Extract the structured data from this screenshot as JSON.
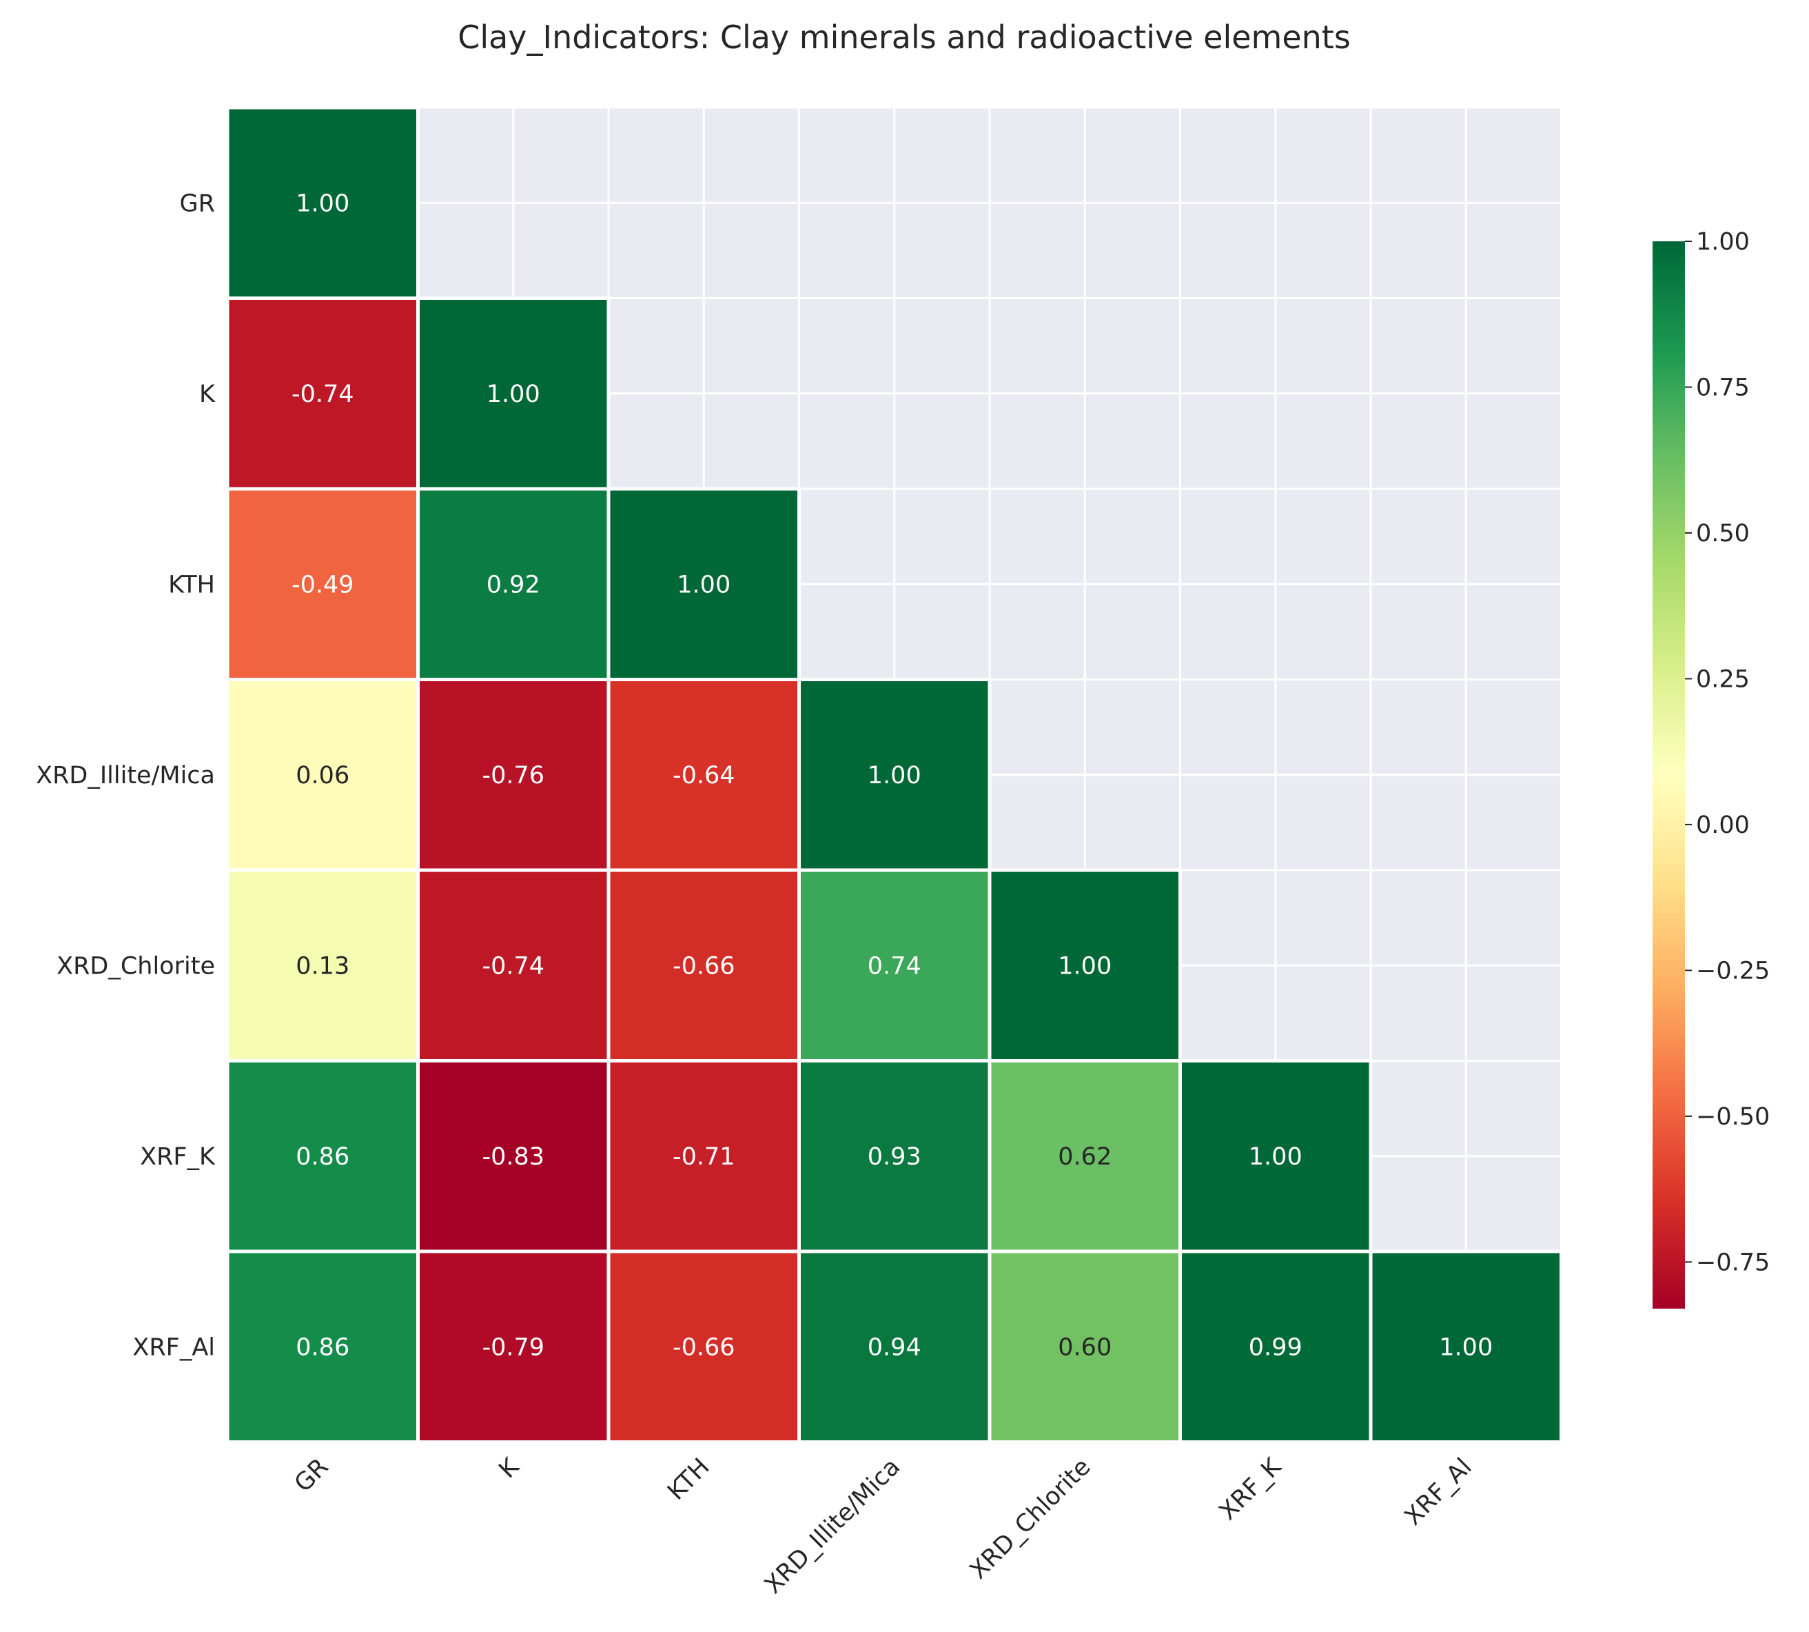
{
  "chart_data": {
    "type": "heatmap",
    "title": "Clay_Indicators: Clay minerals and radioactive elements",
    "variables": [
      "GR",
      "K",
      "KTH",
      "XRD_Illite/Mica",
      "XRD_Chlorite",
      "XRF_K",
      "XRF_Al"
    ],
    "matrix": [
      [
        1.0,
        null,
        null,
        null,
        null,
        null,
        null
      ],
      [
        -0.74,
        1.0,
        null,
        null,
        null,
        null,
        null
      ],
      [
        -0.49,
        0.92,
        1.0,
        null,
        null,
        null,
        null
      ],
      [
        0.06,
        -0.76,
        -0.64,
        1.0,
        null,
        null,
        null
      ],
      [
        0.13,
        -0.74,
        -0.66,
        0.74,
        1.0,
        null,
        null
      ],
      [
        0.86,
        -0.83,
        -0.71,
        0.93,
        0.62,
        1.0,
        null
      ],
      [
        0.86,
        -0.79,
        -0.66,
        0.94,
        0.6,
        0.99,
        1.0
      ]
    ],
    "mask": "upper-triangle",
    "colormap": "RdYlGn",
    "colorbar": {
      "range": [
        -0.83,
        1.0
      ],
      "ticks": [
        -0.75,
        -0.5,
        -0.25,
        0.0,
        0.25,
        0.5,
        0.75,
        1.0
      ],
      "tick_labels": [
        "−0.75",
        "−0.50",
        "−0.25",
        "0.00",
        "0.25",
        "0.50",
        "0.75",
        "1.00"
      ]
    },
    "value_format": "2 decimals",
    "grid": true,
    "background_color": "#eaeaf2"
  }
}
